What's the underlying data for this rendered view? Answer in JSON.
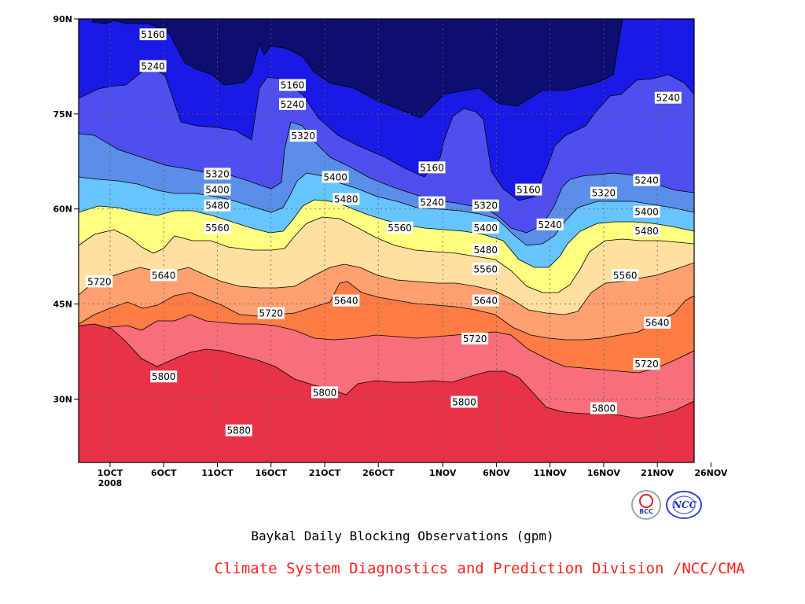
{
  "chart_data": {
    "type": "contour",
    "title": "Baykal Daily Blocking Observations (gpm)",
    "x_ticks": [
      "1OCT",
      "6OCT",
      "11OCT",
      "16OCT",
      "21OCT",
      "26OCT",
      "1NOV",
      "6NOV",
      "11NOV",
      "16NOV",
      "21NOV",
      "26NOV"
    ],
    "x_year_label": "2008",
    "y_ticks": [
      "30N",
      "45N",
      "60N",
      "75N",
      "90N"
    ],
    "ylim": [
      20,
      90
    ],
    "grid": true,
    "levels": [
      5160,
      5240,
      5320,
      5400,
      5480,
      5560,
      5640,
      5720,
      5800,
      5880
    ],
    "fill_colors": [
      "#0e0e70",
      "#1a1ae6",
      "#4f4ff0",
      "#5a8ee8",
      "#66c4ff",
      "#ffff80",
      "#ffe0a0",
      "#ffa070",
      "#ff7d45",
      "#f86e7a",
      "#e83248"
    ],
    "contour_labels": [
      {
        "text": "5160",
        "date": "5OCT",
        "lat": 87.5
      },
      {
        "text": "5240",
        "date": "5OCT",
        "lat": 82.5
      },
      {
        "text": "5160",
        "date": "18OCT",
        "lat": 79.5
      },
      {
        "text": "5240",
        "date": "18OCT",
        "lat": 76.5
      },
      {
        "text": "5320",
        "date": "19OCT",
        "lat": 71.5
      },
      {
        "text": "5320",
        "date": "11OCT",
        "lat": 65.5
      },
      {
        "text": "5400",
        "date": "11OCT",
        "lat": 63.0
      },
      {
        "text": "5400",
        "date": "22OCT",
        "lat": 65.0
      },
      {
        "text": "5480",
        "date": "11OCT",
        "lat": 60.5
      },
      {
        "text": "5480",
        "date": "23OCT",
        "lat": 61.5
      },
      {
        "text": "5560",
        "date": "11OCT",
        "lat": 57.0
      },
      {
        "text": "5560",
        "date": "28OCT",
        "lat": 57.0
      },
      {
        "text": "5720",
        "date": "30SEP",
        "lat": 48.5
      },
      {
        "text": "5640",
        "date": "6OCT",
        "lat": 49.5
      },
      {
        "text": "5640",
        "date": "23OCT",
        "lat": 45.5
      },
      {
        "text": "5720",
        "date": "16OCT",
        "lat": 43.5
      },
      {
        "text": "5160",
        "date": "31OCT",
        "lat": 66.5
      },
      {
        "text": "5240",
        "date": "31OCT",
        "lat": 61.0
      },
      {
        "text": "5320",
        "date": "5NOV",
        "lat": 60.5
      },
      {
        "text": "5400",
        "date": "5NOV",
        "lat": 57.0
      },
      {
        "text": "5480",
        "date": "5NOV",
        "lat": 53.5
      },
      {
        "text": "5560",
        "date": "5NOV",
        "lat": 50.5
      },
      {
        "text": "5640",
        "date": "5NOV",
        "lat": 45.5
      },
      {
        "text": "5720",
        "date": "4NOV",
        "lat": 39.5
      },
      {
        "text": "5800",
        "date": "6OCT",
        "lat": 33.5
      },
      {
        "text": "5800",
        "date": "21OCT",
        "lat": 31.0
      },
      {
        "text": "5800",
        "date": "3NOV",
        "lat": 29.5
      },
      {
        "text": "5880",
        "date": "13OCT",
        "lat": 25.0
      },
      {
        "text": "5160",
        "date": "9NOV",
        "lat": 63.0
      },
      {
        "text": "5240",
        "date": "11NOV",
        "lat": 57.5
      },
      {
        "text": "5320",
        "date": "16NOV",
        "lat": 62.5
      },
      {
        "text": "5240",
        "date": "20NOV",
        "lat": 64.5
      },
      {
        "text": "5240",
        "date": "22NOV",
        "lat": 77.5
      },
      {
        "text": "5400",
        "date": "20NOV",
        "lat": 59.5
      },
      {
        "text": "5480",
        "date": "20NOV",
        "lat": 56.5
      },
      {
        "text": "5560",
        "date": "18NOV",
        "lat": 49.5
      },
      {
        "text": "5640",
        "date": "21NOV",
        "lat": 42.0
      },
      {
        "text": "5720",
        "date": "20NOV",
        "lat": 35.5
      },
      {
        "text": "5800",
        "date": "16NOV",
        "lat": 28.5
      }
    ]
  },
  "footer": {
    "title": "Baykal Daily Blocking Observations (gpm)",
    "credit": "Climate System Diagnostics and Prediction Division /NCC/CMA",
    "logos": [
      "BCC",
      "NCC"
    ]
  }
}
